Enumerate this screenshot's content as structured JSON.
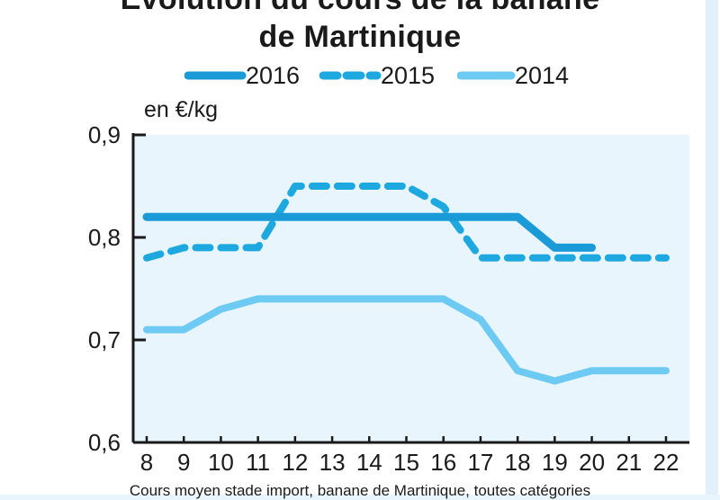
{
  "chart_data": {
    "type": "line",
    "title": [
      "Evolution du cours de la banane",
      "de Martinique"
    ],
    "ylabel": "en €/kg",
    "xlabel": "",
    "x": [
      8,
      9,
      10,
      11,
      12,
      13,
      14,
      15,
      16,
      17,
      18,
      19,
      20,
      21,
      22
    ],
    "ylim": [
      0.6,
      0.9
    ],
    "yticks": [
      "0,6",
      "0,7",
      "0,8",
      "0,9"
    ],
    "ytick_values": [
      0.6,
      0.7,
      0.8,
      0.9
    ],
    "series": [
      {
        "name": "2016",
        "style": "solid-thick",
        "color": "#1a9ad6",
        "x": [
          8,
          9,
          10,
          11,
          12,
          13,
          14,
          15,
          16,
          17,
          18,
          19,
          20
        ],
        "values": [
          0.82,
          0.82,
          0.82,
          0.82,
          0.82,
          0.82,
          0.82,
          0.82,
          0.82,
          0.82,
          0.82,
          0.79,
          0.79
        ]
      },
      {
        "name": "2015",
        "style": "dashed",
        "color": "#1ea8e0",
        "x": [
          8,
          9,
          10,
          11,
          12,
          13,
          14,
          15,
          16,
          17,
          18,
          19,
          20,
          21,
          22
        ],
        "values": [
          0.78,
          0.79,
          0.79,
          0.79,
          0.85,
          0.85,
          0.85,
          0.85,
          0.83,
          0.78,
          0.78,
          0.78,
          0.78,
          0.78,
          0.78
        ]
      },
      {
        "name": "2014",
        "style": "solid",
        "color": "#6dcaf2",
        "x": [
          8,
          9,
          10,
          11,
          12,
          13,
          14,
          15,
          16,
          17,
          18,
          19,
          20,
          21,
          22
        ],
        "values": [
          0.71,
          0.71,
          0.73,
          0.74,
          0.74,
          0.74,
          0.74,
          0.74,
          0.74,
          0.72,
          0.67,
          0.66,
          0.67,
          0.67,
          0.67
        ]
      }
    ],
    "plot_background": "#e8f5fd",
    "grid": false,
    "legend_position": "top-center"
  },
  "footnote": "Cours moyen stade import, banane de Martinique, toutes catégories"
}
